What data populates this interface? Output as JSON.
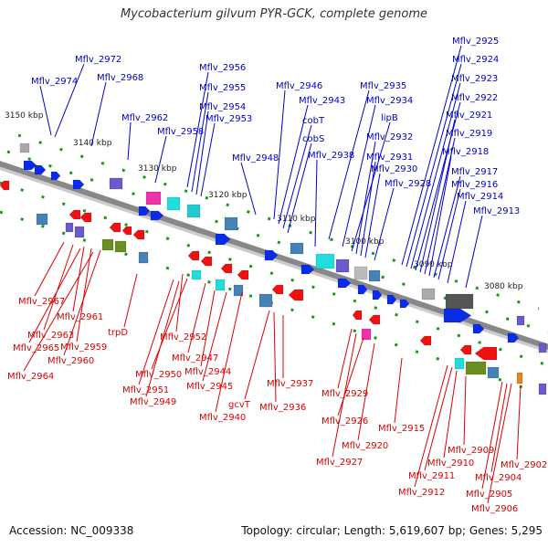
{
  "title": "Mycobacterium gilvum PYR-GCK, complete genome",
  "footer": {
    "accession": "Accession: NC_009338",
    "topology": "Topology: circular; Length: 5,619,607 bp; Genes: 5,295"
  },
  "colors": {
    "upper_label": "#0000cc",
    "lower_label": "#dd0000",
    "backbone": "#888888",
    "tick": "#1a9a1a",
    "forward_gene": "#0b2bea",
    "reverse_gene": "#ee1111"
  },
  "kbp_ticks": [
    "3150 kbp",
    "3140 kbp",
    "3130 kbp",
    "3120 kbp",
    "3110 kbp",
    "3100 kbp",
    "3090 kbp",
    "3080 kbp"
  ],
  "upper_labels": [
    "Mflv_2972",
    "Mflv_2974",
    "Mflv_2968",
    "Mflv_2962",
    "Mflv_2958",
    "Mflv_2956",
    "Mflv_2955",
    "Mflv_2954",
    "Mflv_2953",
    "Mflv_2948",
    "Mflv_2946",
    "Mflv_2943",
    "cobT",
    "cobS",
    "Mflv_2938",
    "Mflv_2935",
    "Mflv_2934",
    "lipB",
    "Mflv_2932",
    "Mflv_2931",
    "Mflv_2930",
    "Mflv_2928",
    "Mflv_2925",
    "Mflv_2924",
    "Mflv_2923",
    "Mflv_2922",
    "Mflv_2921",
    "Mflv_2919",
    "Mflv_2918",
    "Mflv_2917",
    "Mflv_2916",
    "Mflv_2914",
    "Mflv_2913"
  ],
  "lower_labels": [
    "Mflv_2967",
    "Mflv_2963",
    "Mflv_2961",
    "Mflv_2965",
    "Mflv_2959",
    "Mflv_2960",
    "Mflv_2964",
    "trpD",
    "Mflv_2952",
    "Mflv_2947",
    "Mflv_2950",
    "Mflv_2944",
    "Mflv_2951",
    "Mflv_2945",
    "Mflv_2949",
    "Mflv_2940",
    "gcvT",
    "Mflv_2937",
    "Mflv_2936",
    "Mflv_2929",
    "Mflv_2926",
    "Mflv_2915",
    "Mflv_2920",
    "Mflv_2927",
    "Mflv_2909",
    "Mflv_2910",
    "Mflv_2902",
    "Mflv_2911",
    "Mflv_2904",
    "Mflv_2912",
    "Mflv_2905",
    "Mflv_2906"
  ]
}
